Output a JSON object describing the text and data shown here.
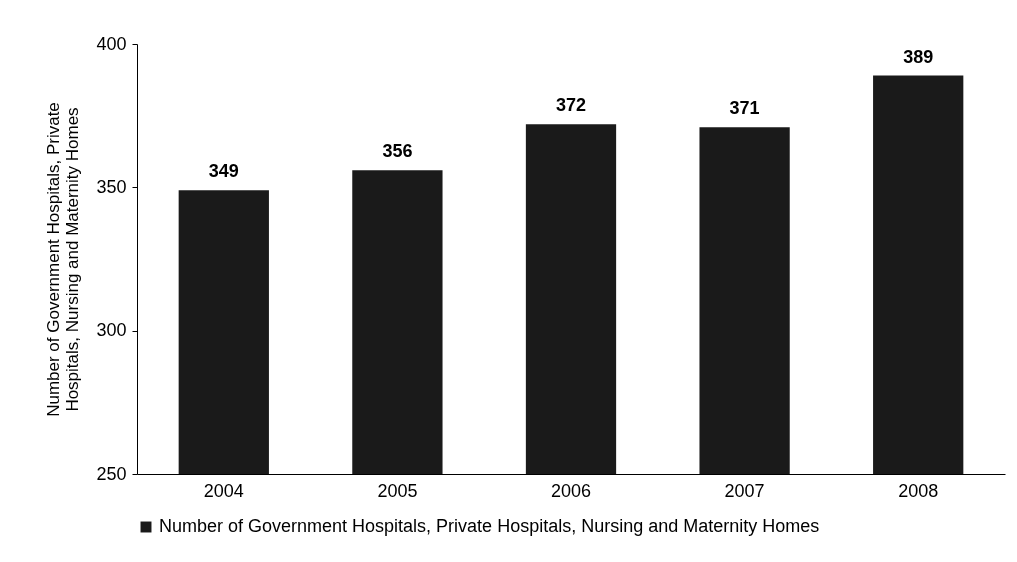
{
  "chart_data": {
    "type": "bar",
    "categories": [
      "2004",
      "2005",
      "2006",
      "2007",
      "2008"
    ],
    "series": [
      {
        "name": "Number of Government Hospitals, Private Hospitals, Nursing and Maternity Homes",
        "color": "#1a1a1a",
        "values": [
          349,
          356,
          372,
          371,
          389
        ]
      }
    ],
    "ylabel": "Number of Government Hospitals, Private Hospitals, Nursing and Maternity Homes",
    "ylim": [
      250,
      400
    ],
    "yticks": [
      250,
      300,
      350,
      400
    ],
    "grid": false,
    "legend": "bottom",
    "data_labels": true
  }
}
